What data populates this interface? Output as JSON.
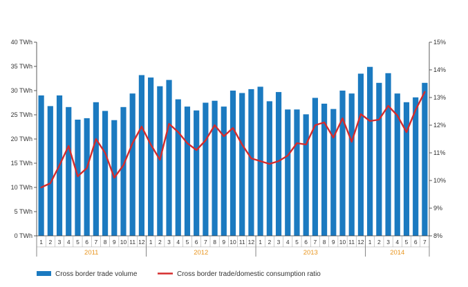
{
  "chart_data": {
    "type": "bar",
    "title": "",
    "xlabel": "",
    "ylabel": "",
    "colors": {
      "bars": "#1b7ac0",
      "line": "#d52b2b",
      "years": "#e8951e",
      "axis": "#333333"
    },
    "years": [
      {
        "label": "2011",
        "months": [
          "1",
          "2",
          "3",
          "4",
          "5",
          "6",
          "7",
          "8",
          "9",
          "10",
          "11",
          "12"
        ]
      },
      {
        "label": "2012",
        "months": [
          "1",
          "2",
          "3",
          "4",
          "5",
          "6",
          "7",
          "8",
          "9",
          "10",
          "11",
          "12"
        ]
      },
      {
        "label": "2013",
        "months": [
          "1",
          "2",
          "3",
          "4",
          "5",
          "6",
          "7",
          "8",
          "9",
          "10",
          "11",
          "12"
        ]
      },
      {
        "label": "2014",
        "months": [
          "1",
          "2",
          "3",
          "4",
          "5",
          "6",
          "7"
        ]
      }
    ],
    "left_axis": {
      "ylim": [
        0,
        40
      ],
      "ticks": [
        "0 TWh",
        "5 TWh",
        "10 TWh",
        "15 TWh",
        "20 TWh",
        "25 TWh",
        "30 TWh",
        "35 TWh",
        "40 TWh"
      ]
    },
    "right_axis": {
      "ylim": [
        8,
        15
      ],
      "ticks": [
        "8%",
        "9%",
        "10%",
        "11%",
        "12%",
        "13%",
        "14%",
        "15%"
      ]
    },
    "series": [
      {
        "name": "Cross border trade volume",
        "type": "bar",
        "axis": "left",
        "values": [
          29.0,
          26.8,
          29.0,
          26.6,
          24.0,
          24.3,
          27.6,
          25.8,
          23.9,
          26.6,
          29.4,
          33.2,
          32.7,
          30.9,
          32.2,
          28.2,
          26.7,
          25.9,
          27.5,
          27.9,
          26.7,
          30.0,
          29.5,
          30.3,
          30.8,
          27.8,
          29.7,
          26.1,
          26.1,
          25.1,
          28.5,
          27.3,
          26.2,
          30.0,
          29.4,
          33.5,
          34.9,
          31.6,
          33.6,
          29.4,
          27.6,
          28.6,
          31.6
        ]
      },
      {
        "name": "Cross border trade/domestic consumption  ratio",
        "type": "line",
        "axis": "right",
        "values": [
          9.75,
          9.9,
          10.55,
          11.25,
          10.15,
          10.45,
          11.5,
          11.0,
          10.1,
          10.55,
          11.35,
          11.95,
          11.3,
          10.75,
          12.05,
          11.75,
          11.35,
          11.1,
          11.45,
          12.0,
          11.6,
          11.9,
          11.3,
          10.8,
          10.7,
          10.6,
          10.7,
          10.9,
          11.35,
          11.3,
          12.0,
          12.1,
          11.55,
          12.25,
          11.4,
          12.4,
          12.15,
          12.2,
          12.7,
          12.35,
          11.75,
          12.55,
          13.2
        ]
      }
    ],
    "legend": {
      "position": "bottom-left"
    },
    "grid": false
  }
}
